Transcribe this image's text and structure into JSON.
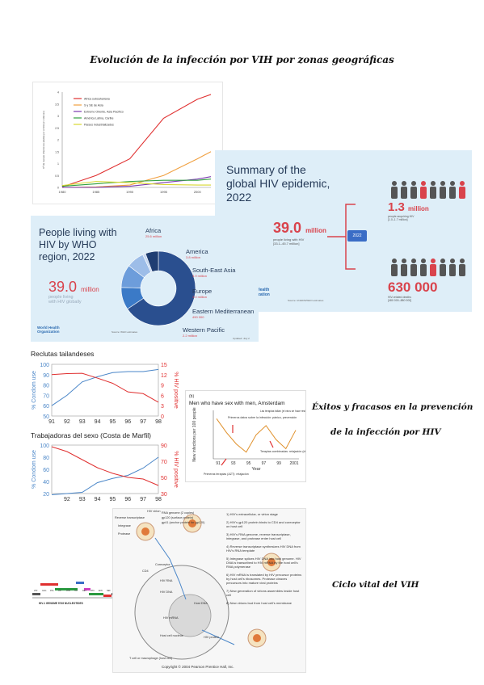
{
  "headings": {
    "main": "Evolución de la infección por VIH por zonas geográficas",
    "prevention_1": "Éxitos y fracasos en la prevención",
    "prevention_2": "de la infección por HIV",
    "cycle": "Ciclo vital del VIH"
  },
  "summary": {
    "title": "Summary of the\nglobal HIV epidemic,\n2022",
    "people_value": "39.0",
    "people_unit": "million",
    "people_label": "people living with HIV",
    "people_range": "[33.1–45.7 million]",
    "year_badge": "2022",
    "new_value": "1.3",
    "new_unit": "million",
    "new_label": "people acquiring HIV",
    "new_range": "[1.0–1.7 million]",
    "deaths_value": "630 000",
    "deaths_label": "HIV-related deaths",
    "deaths_range": "[480 000–880 000]",
    "source": "Source: UNAIDS/WHO estimates",
    "who_mark": "Health\nization"
  },
  "region": {
    "title": "People living with\nHIV by WHO\nregion, 2022",
    "total_value": "39.0",
    "total_unit": "million",
    "total_label": "people living\nwith HIV globally",
    "org": "World Health\nOrganization",
    "source": "Source: WHO estimates",
    "updated": "Updated: July 2",
    "regions": [
      {
        "name": "Africa",
        "value": "25.6 million",
        "share": 25.6,
        "color": "#2a4f8f"
      },
      {
        "name": "America",
        "value": "3.8 million",
        "share": 3.8,
        "color": "#3b7ac7"
      },
      {
        "name": "South-East Asia",
        "value": "3.9 million",
        "share": 3.9,
        "color": "#6d9ddb"
      },
      {
        "name": "Europe",
        "value": "3.0 million",
        "share": 3.0,
        "color": "#9dbde8"
      },
      {
        "name": "Eastern Mediterranean",
        "value": "490 000",
        "share": 0.49,
        "color": "#c6d8f1"
      },
      {
        "name": "Western Pacific",
        "value": "2.2 million",
        "share": 2.2,
        "color": "#1f3e72"
      }
    ]
  },
  "chart_data": [
    {
      "type": "line",
      "ylabel": "Nº de nuevas infecciones adultas por el VIH (en millones)",
      "x": [
        1980,
        1985,
        1990,
        1995,
        2000,
        2002
      ],
      "ylim": [
        0,
        4
      ],
      "series": [
        {
          "name": "Africa subsahariana",
          "color": "#e03030",
          "values": [
            0.02,
            0.5,
            1.2,
            2.9,
            3.7,
            3.9
          ]
        },
        {
          "name": "S y SE de Asia",
          "color": "#f0a040",
          "values": [
            0,
            0.02,
            0.1,
            0.5,
            1.2,
            1.5
          ]
        },
        {
          "name": "Extremo Oriente, Asia Pacífico",
          "color": "#7a3ab0",
          "values": [
            0,
            0,
            0.05,
            0.2,
            0.35,
            0.45
          ]
        },
        {
          "name": "América Latina, Caribe",
          "color": "#30a040",
          "values": [
            0.05,
            0.15,
            0.25,
            0.3,
            0.3,
            0.35
          ]
        },
        {
          "name": "Países industrializados",
          "color": "#d8d830",
          "values": [
            0.08,
            0.25,
            0.2,
            0.12,
            0.1,
            0.1
          ]
        }
      ],
      "ticks_x": [
        "1980",
        "1985",
        "1990",
        "1995",
        "2000"
      ],
      "ticks_y": [
        "0",
        "0.5",
        "1",
        "1.5",
        "2",
        "2.5",
        "3",
        "3.5",
        "4"
      ]
    },
    {
      "type": "line",
      "title": "Reclutas tailandeses",
      "x": [
        "91",
        "92",
        "93",
        "94",
        "95",
        "96",
        "97",
        "98"
      ],
      "left_label": "% Condom use",
      "right_label": "% HIV positive",
      "left_ylim": [
        50,
        100
      ],
      "right_ylim": [
        0,
        15
      ],
      "left_ticks": [
        "100",
        "90",
        "80",
        "70",
        "60",
        "50"
      ],
      "right_ticks": [
        "15",
        "12",
        "9",
        "6",
        "3",
        "0"
      ],
      "series": [
        {
          "name": "% Condom use",
          "color": "#4a86c8",
          "values": [
            60,
            70,
            83,
            88,
            92,
            93,
            93,
            95
          ]
        },
        {
          "name": "% HIV positive",
          "color": "#e03030",
          "values": [
            12,
            12.3,
            12.4,
            11,
            9.5,
            7,
            6.5,
            4
          ]
        }
      ]
    },
    {
      "type": "line",
      "title": "Trabajadoras del sexo (Costa de Marfil)",
      "x": [
        "91",
        "92",
        "93",
        "94",
        "95",
        "96",
        "97",
        "98"
      ],
      "left_label": "% Condom use",
      "right_label": "% HIV positive",
      "left_ylim": [
        20,
        100
      ],
      "right_ylim": [
        30,
        90
      ],
      "left_ticks": [
        "100",
        "80",
        "60",
        "40",
        "20"
      ],
      "right_ticks": [
        "90",
        "70",
        "50",
        "30"
      ],
      "tick_labels_x": [
        "92",
        "93",
        "94",
        "95",
        "96",
        "97",
        "98"
      ],
      "series": [
        {
          "name": "% Condom use",
          "color": "#4a86c8",
          "values": [
            18,
            20,
            22,
            38,
            45,
            50,
            62,
            80
          ]
        },
        {
          "name": "% HIV positive",
          "color": "#e03030",
          "values": [
            88,
            82,
            72,
            62,
            55,
            50,
            48,
            40
          ]
        }
      ]
    },
    {
      "type": "line",
      "panel": "(b)",
      "title": "Men who have sex with men, Amsterdam",
      "ylabel": "New infections per 100 people",
      "xlabel": "Year",
      "x_ticks": [
        "91",
        "93",
        "95",
        "97",
        "99",
        "2001"
      ],
      "annotations": [
        "Primeros datos sobre la infección: pánico, prevención",
        "Las terapias fallan (el virus se hace resistente): pánico, prevención (de nuevo)",
        "Primeras terapias (AZT): relajación",
        "Terapias combinadas: relajación (de nuevo)"
      ],
      "series": [
        {
          "name": "",
          "color": "#e0902a",
          "values": [
            3.2,
            2.0,
            1.0,
            0.3,
            1.8,
            2.6,
            1.4,
            0.6,
            2.2
          ]
        }
      ]
    }
  ],
  "lifecycle": {
    "labels": [
      "Reverse transcriptase",
      "Integrase",
      "Protease",
      "HIV virion",
      "RNA genome (2 copies)",
      "gp120 (surface protein)",
      "gp41 (anchor protein for gp120)",
      "CD4",
      "Coreceptor",
      "HIV RNA",
      "HIV DNA",
      "Host DNA",
      "HIV mRNA",
      "Host cell nucleus",
      "HIV protein",
      "T cell or macrophage (host cell)"
    ],
    "steps": [
      "1) HIV's extracellular, or virion stage",
      "2) HIV's gp120 protein binds to CD4 and coreceptor on host cell",
      "3) HIV's RNA genome, reverse transcriptase, integrase, and protease enter host cell",
      "4) Reverse transcriptase synthesizes HIV DNA from HIV's RNA template",
      "5) Integrase splices HIV DNA into host genome. HIV DNA is transcribed to HIV mRNA by the host cell's RNA polymerase",
      "6) HIV mRNA is translated by HIV precursor proteins by host cell's ribosomes. Protease cleaves precursors into mature viral proteins",
      "7) New generation of virions assembles inside host cell",
      "8) New virions bud from host cell's membrane"
    ],
    "copyright": "Copyright © 2004 Pearson Prentice Hall, Inc."
  },
  "genome": {
    "caption": "HIV-1 GENOME 9749 NUCLEOTIDES",
    "genes": [
      "LTR",
      "GAG",
      "POL",
      "VIF",
      "VPR",
      "TAT",
      "REV",
      "VPU",
      "ENV",
      "NEF",
      "LTR"
    ]
  }
}
